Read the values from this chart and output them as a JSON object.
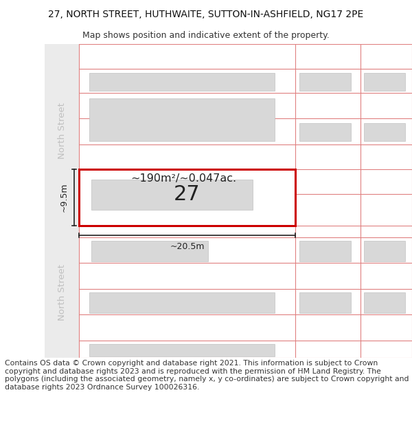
{
  "title": "27, NORTH STREET, HUTHWAITE, SUTTON-IN-ASHFIELD, NG17 2PE",
  "subtitle": "Map shows position and indicative extent of the property.",
  "footer_lines": [
    "Contains OS data © Crown copyright and database right 2021. This information is subject to Crown copyright and database rights 2023 and is reproduced with the permission of",
    "HM Land Registry. The polygons (including the associated geometry, namely x, y co-ordinates) are subject to Crown copyright and database rights 2023 Ordnance Survey",
    "100026316."
  ],
  "bg_color": "#ffffff",
  "map_bg": "#ffffff",
  "building_color": "#d8d8d8",
  "building_outline": "#c0c0c0",
  "highlight_fill": "#ffffff",
  "highlight_color": "#cc0000",
  "pink_outline": "#e08080",
  "street_label_color": "#c0c0c0",
  "area_text": "~190m²/~0.047ac.",
  "property_number": "27",
  "dim_width": "~20.5m",
  "dim_height": "~9.5m",
  "title_fontsize": 10,
  "subtitle_fontsize": 9,
  "footer_fontsize": 7.8,
  "street_fontsize": 9.5
}
